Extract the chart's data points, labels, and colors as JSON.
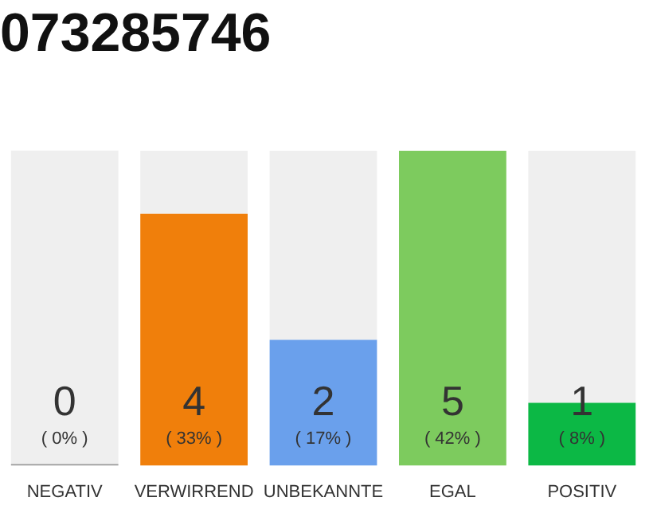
{
  "chart_data": {
    "type": "bar",
    "title": "073285746",
    "stacked": true,
    "categories": [
      "NEGATIV",
      "VERWIRREND",
      "UNBEKANNTE",
      "EGAL",
      "POSITIV"
    ],
    "series": [
      {
        "colors": [
          "#999999",
          "#f07f0b",
          "#6aa0ec",
          "#7dcb5e",
          "#0cb845"
        ],
        "values": [
          0,
          4,
          2,
          5,
          1
        ],
        "value_labels": [
          "0",
          "4",
          "2",
          "5",
          "1"
        ]
      },
      {
        "color": "#efefef",
        "values": [
          5,
          1,
          3,
          0,
          4
        ]
      }
    ],
    "annotations": [
      "( 0% )",
      "( 33% )",
      "( 17% )",
      "( 42% )",
      "( 8% )"
    ],
    "ylim": [
      0,
      5
    ],
    "tick_labels": "x",
    "grid": false,
    "legend": false
  }
}
